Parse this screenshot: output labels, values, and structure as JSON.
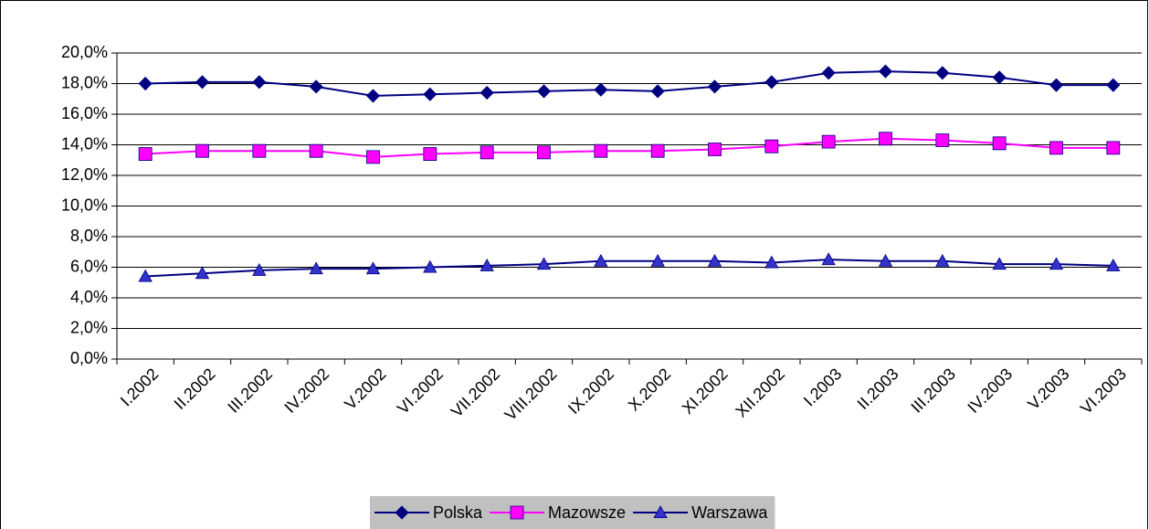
{
  "chart_data": {
    "type": "line",
    "categories": [
      "I.2002",
      "II.2002",
      "III.2002",
      "IV.2002",
      "V.2002",
      "VI.2002",
      "VII.2002",
      "VIII.2002",
      "IX.2002",
      "X.2002",
      "XI.2002",
      "XII.2002",
      "I.2003",
      "II.2003",
      "III.2003",
      "IV.2003",
      "V.2003",
      "VI.2003"
    ],
    "series": [
      {
        "name": "Polska",
        "color": "#000080",
        "marker": "diamond",
        "marker_color": "#000080",
        "values": [
          18.0,
          18.1,
          18.1,
          17.8,
          17.2,
          17.3,
          17.4,
          17.5,
          17.6,
          17.5,
          17.8,
          18.1,
          18.7,
          18.8,
          18.7,
          18.4,
          17.9,
          17.9
        ]
      },
      {
        "name": "Mazowsze",
        "color": "#ff00ff",
        "marker": "square",
        "marker_color": "#ff00ff",
        "values": [
          13.4,
          13.6,
          13.6,
          13.6,
          13.2,
          13.4,
          13.5,
          13.5,
          13.6,
          13.6,
          13.7,
          13.9,
          14.2,
          14.4,
          14.3,
          14.1,
          13.8,
          13.8
        ]
      },
      {
        "name": "Warszawa",
        "color": "#000080",
        "marker": "triangle",
        "marker_color": "#3333cc",
        "values": [
          5.4,
          5.6,
          5.8,
          5.9,
          5.9,
          6.0,
          6.1,
          6.2,
          6.4,
          6.4,
          6.4,
          6.3,
          6.5,
          6.4,
          6.4,
          6.2,
          6.2,
          6.1
        ]
      }
    ],
    "ylim": [
      0,
      20
    ],
    "yticks": [
      {
        "value": 0,
        "label": "0,0%"
      },
      {
        "value": 2,
        "label": "2,0%"
      },
      {
        "value": 4,
        "label": "4,0%"
      },
      {
        "value": 6,
        "label": "6,0%"
      },
      {
        "value": 8,
        "label": "8,0%"
      },
      {
        "value": 10,
        "label": "10,0%"
      },
      {
        "value": 12,
        "label": "12,0%"
      },
      {
        "value": 14,
        "label": "14,0%"
      },
      {
        "value": 16,
        "label": "16,0%"
      },
      {
        "value": 18,
        "label": "18,0%"
      },
      {
        "value": 20,
        "label": "20,0%"
      }
    ],
    "grid": true,
    "legend": "bottom"
  }
}
